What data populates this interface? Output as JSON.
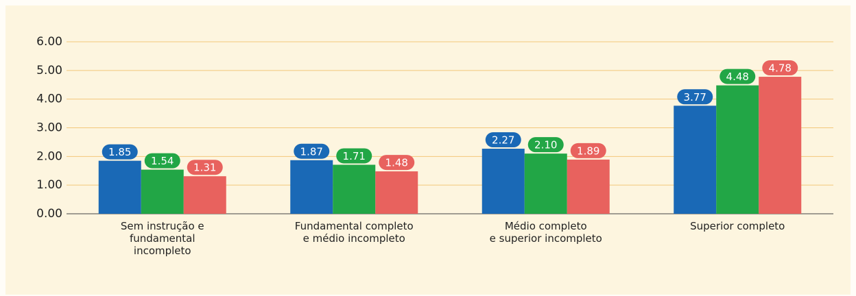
{
  "chart_data": {
    "type": "bar",
    "categories": [
      "Sem instrução e\nfundamental\nincompleto",
      "Fundamental completo\ne médio incompleto",
      "Médio completo\ne superior incompleto",
      "Superior completo"
    ],
    "series": [
      {
        "color": "#1a69b6",
        "values": [
          1.85,
          1.87,
          2.27,
          3.77
        ],
        "value_labels": [
          "1.85",
          "1.87",
          "2.27",
          "3.77"
        ]
      },
      {
        "color": "#22a646",
        "values": [
          1.54,
          1.71,
          2.1,
          4.48
        ],
        "value_labels": [
          "1.54",
          "1.71",
          "2.10",
          "4.48"
        ]
      },
      {
        "color": "#e8625e",
        "values": [
          1.31,
          1.48,
          1.89,
          4.78
        ],
        "value_labels": [
          "1.31",
          "1.48",
          "1.89",
          "4.78"
        ]
      }
    ],
    "ylim": [
      0,
      6
    ],
    "yticks": [
      {
        "value": 0,
        "label": "0.00"
      },
      {
        "value": 1,
        "label": "1.00"
      },
      {
        "value": 2,
        "label": "2.00"
      },
      {
        "value": 3,
        "label": "3.00"
      },
      {
        "value": 4,
        "label": "4.00"
      },
      {
        "value": 5,
        "label": "5.00"
      },
      {
        "value": 6,
        "label": "6.00"
      }
    ],
    "grid": true
  }
}
